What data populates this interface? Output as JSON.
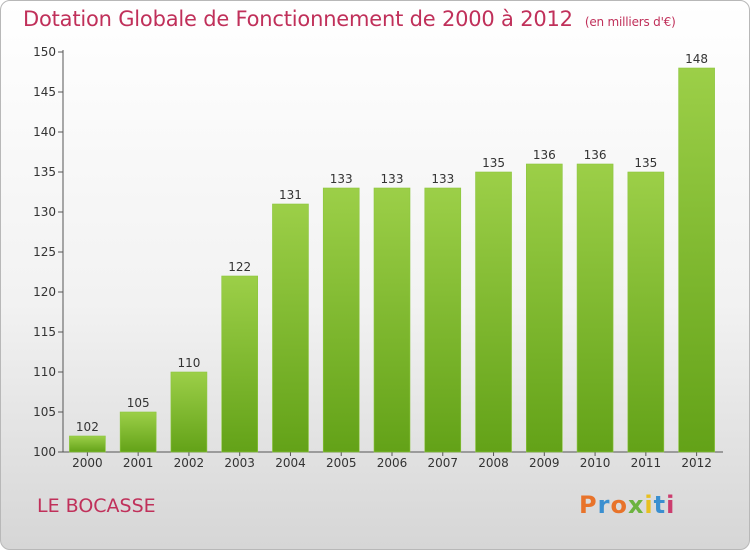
{
  "header": {
    "title": "Dotation Globale de Fonctionnement de 2000 à 2012",
    "unit": "(en milliers d'€)"
  },
  "footer": {
    "commune": "LE BOCASSE",
    "logo": "Proxiti",
    "logo_colors": [
      "#e8732a",
      "#3a8fd0",
      "#e8732a",
      "#6cb33f",
      "#e8c020",
      "#3a8fd0",
      "#cc3d6e"
    ]
  },
  "chart_data": {
    "type": "bar",
    "title": "Dotation Globale de Fonctionnement de 2000 à 2012",
    "xlabel": "",
    "ylabel": "",
    "categories": [
      "2000",
      "2001",
      "2002",
      "2003",
      "2004",
      "2005",
      "2006",
      "2007",
      "2008",
      "2009",
      "2010",
      "2011",
      "2012"
    ],
    "values": [
      102,
      105,
      110,
      122,
      131,
      133,
      133,
      133,
      135,
      136,
      136,
      135,
      148
    ],
    "ylim": [
      100,
      150
    ],
    "yticks": [
      100,
      105,
      110,
      115,
      120,
      125,
      130,
      135,
      140,
      145,
      150
    ],
    "grid": false,
    "bar_color": "#7dbb2e"
  }
}
